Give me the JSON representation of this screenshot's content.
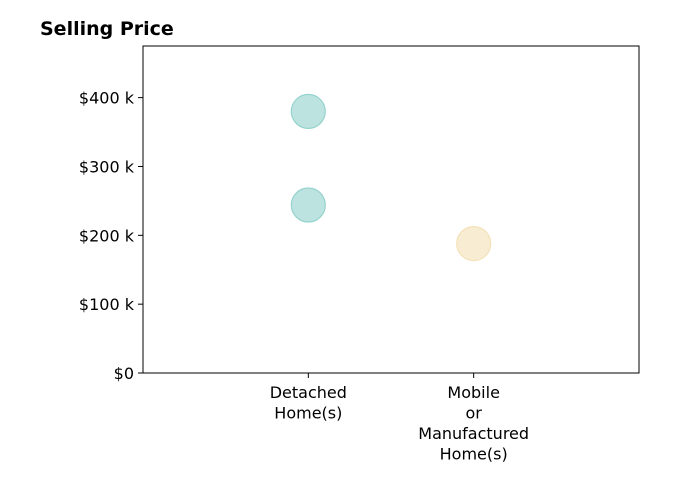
{
  "chart_data": {
    "type": "scatter",
    "title": "Selling Price",
    "xlabel": "",
    "ylabel": "",
    "categories": [
      [
        "Detached",
        "Home(s)"
      ],
      [
        "Mobile",
        "or",
        "Manufactured",
        "Home(s)"
      ]
    ],
    "xlim": [
      -1,
      2
    ],
    "ylim": [
      0,
      475000
    ],
    "yticks": [
      0,
      100000,
      200000,
      300000,
      400000
    ],
    "ytick_labels": [
      "$0",
      "$100 k",
      "$200 k",
      "$300 k",
      "$400 k"
    ],
    "grid": false,
    "legend": "none",
    "points": [
      {
        "category_index": 0,
        "y": 380000,
        "color": "#8ecfca"
      },
      {
        "category_index": 0,
        "y": 244000,
        "color": "#8ecfca"
      },
      {
        "category_index": 1,
        "y": 188000,
        "color": "#f3dfb3"
      }
    ]
  }
}
